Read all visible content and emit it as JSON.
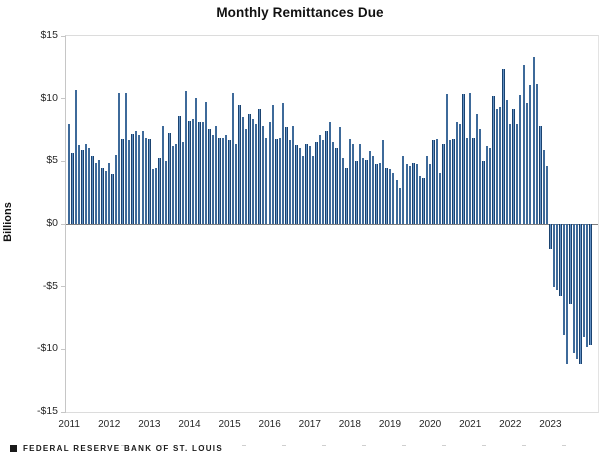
{
  "title": "Monthly Remittances Due",
  "y_axis": {
    "label": "Billions",
    "ticks": [
      {
        "text": "$15",
        "value": 15
      },
      {
        "text": "$10",
        "value": 10
      },
      {
        "text": "$5",
        "value": 5
      },
      {
        "text": "$0",
        "value": 0
      },
      {
        "text": "-$5",
        "value": -5
      },
      {
        "text": "-$10",
        "value": -10
      },
      {
        "text": "-$15",
        "value": -15
      }
    ]
  },
  "x_axis": {
    "years": [
      "2011",
      "2012",
      "2013",
      "2014",
      "2015",
      "2016",
      "2017",
      "2018",
      "2019",
      "2020",
      "2021",
      "2022",
      "2023"
    ]
  },
  "source": {
    "marker": "square-bullet",
    "text": "FEDERAL RESERVE BANK OF ST. LOUIS"
  },
  "colors": {
    "bar_edge": "#1b4370",
    "bar_center": "#6290c3",
    "zero_line": "#7f7f7f",
    "axis_border": "#c6c6c6",
    "text": "#262626"
  },
  "chart_data": {
    "type": "bar",
    "title": "Monthly Remittances Due",
    "xlabel": "",
    "ylabel": "Billions",
    "unit": "USD billions",
    "ylim": [
      -15,
      15
    ],
    "grid": "off",
    "legend_position": "none",
    "frequency": "monthly",
    "start_month": "2011-01",
    "end_month": "2024-01",
    "x_year_labels": [
      "2011",
      "2012",
      "2013",
      "2014",
      "2015",
      "2016",
      "2017",
      "2018",
      "2019",
      "2020",
      "2021",
      "2022",
      "2023"
    ],
    "values": [
      8.0,
      5.65,
      10.7,
      6.3,
      5.9,
      6.4,
      6.05,
      5.4,
      4.85,
      5.1,
      4.5,
      4.2,
      4.85,
      3.95,
      5.5,
      10.45,
      6.8,
      10.45,
      6.7,
      7.2,
      7.45,
      7.1,
      7.45,
      6.9,
      6.8,
      4.4,
      4.5,
      5.3,
      7.85,
      5.0,
      7.3,
      6.2,
      6.4,
      8.6,
      6.55,
      10.6,
      8.2,
      8.4,
      10.05,
      8.1,
      8.1,
      9.7,
      7.6,
      7.1,
      7.85,
      6.9,
      6.9,
      7.1,
      6.7,
      10.45,
      6.4,
      9.5,
      8.5,
      7.6,
      8.75,
      8.4,
      8.0,
      9.15,
      7.85,
      6.9,
      8.1,
      9.5,
      6.8,
      6.9,
      9.65,
      7.7,
      6.7,
      7.85,
      6.3,
      6.05,
      5.4,
      6.4,
      6.2,
      5.4,
      6.55,
      7.1,
      6.7,
      7.45,
      8.1,
      6.55,
      6.05,
      7.7,
      5.25,
      4.5,
      6.8,
      6.4,
      5.0,
      6.4,
      5.25,
      5.1,
      5.8,
      5.4,
      4.75,
      4.85,
      6.7,
      4.5,
      4.35,
      4.1,
      3.55,
      2.9,
      5.4,
      4.75,
      4.6,
      4.85,
      4.75,
      3.8,
      3.7,
      5.4,
      4.75,
      6.7,
      6.8,
      4.1,
      6.4,
      10.4,
      6.7,
      6.8,
      8.1,
      8.0,
      10.4,
      6.9,
      10.45,
      6.9,
      8.75,
      7.6,
      5.0,
      6.2,
      6.05,
      10.2,
      9.15,
      9.3,
      12.4,
      9.9,
      8.0,
      9.2,
      8.0,
      10.3,
      12.65,
      9.65,
      11.1,
      13.3,
      11.2,
      7.85,
      5.9,
      4.6,
      -2.0,
      -5.0,
      -5.25,
      -5.75,
      -8.85,
      -11.2,
      -6.4,
      -10.3,
      -10.8,
      -11.2,
      -9.0,
      -9.8,
      -9.65
    ]
  }
}
